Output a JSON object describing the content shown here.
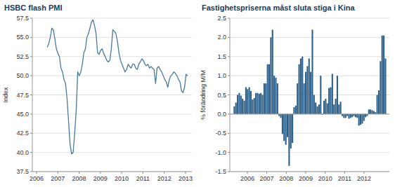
{
  "chart_data": [
    {
      "type": "line",
      "title": "HSBC flash PMI",
      "ylabel": "Index",
      "color": "#4a7a9b",
      "grid": true,
      "xlim": [
        2005.8,
        2013.3
      ],
      "xticks": [
        2006,
        2007,
        2008,
        2009,
        2010,
        2011,
        2012,
        2013
      ],
      "ylim": [
        37.5,
        57.5
      ],
      "yticks": [
        37.5,
        {
          "value": 40,
          "label": "40.0"
        },
        42.5,
        {
          "value": 45,
          "label": "45.0"
        },
        47.5,
        {
          "value": 50,
          "label": "50.0"
        },
        52.5,
        {
          "value": 55,
          "label": "55.0"
        },
        57.5
      ],
      "x": [
        2006.5,
        2006.5717,
        2006.6435,
        2006.7152,
        2006.787,
        2006.8587,
        2006.9304,
        2007.0022,
        2007.0739,
        2007.1457,
        2007.2174,
        2007.2891,
        2007.3609,
        2007.4326,
        2007.5043,
        2007.5761,
        2007.6478,
        2007.7196,
        2007.7913,
        2007.863,
        2007.9348,
        2008.0065,
        2008.0783,
        2008.15,
        2008.2217,
        2008.2935,
        2008.3652,
        2008.437,
        2008.5087,
        2008.5804,
        2008.6522,
        2008.7239,
        2008.7957,
        2008.8674,
        2008.9391,
        2009.0109,
        2009.0826,
        2009.1543,
        2009.2261,
        2009.2978,
        2009.3696,
        2009.4413,
        2009.513,
        2009.5848,
        2009.6565,
        2009.7283,
        2009.8,
        2009.8717,
        2009.9435,
        2010.0152,
        2010.087,
        2010.1587,
        2010.2304,
        2010.3022,
        2010.3739,
        2010.4457,
        2010.5174,
        2010.5891,
        2010.6609,
        2010.7326,
        2010.8043,
        2010.8761,
        2010.9478,
        2011.0196,
        2011.0913,
        2011.163,
        2011.2348,
        2011.3065,
        2011.3783,
        2011.45,
        2011.5217,
        2011.5935,
        2011.6652,
        2011.737,
        2011.8087,
        2011.8804,
        2011.9522,
        2012.0239,
        2012.0957,
        2012.1674,
        2012.2391,
        2012.3109,
        2012.3826,
        2012.4543,
        2012.5261,
        2012.5978,
        2012.6696,
        2012.7413,
        2012.813,
        2012.8848,
        2012.9565,
        2013.0283,
        2013.1
      ],
      "values": [
        53.7,
        54.2,
        55.0,
        56.2,
        56.0,
        54.8,
        53.5,
        52.9,
        52.5,
        51.0,
        50.5,
        49.5,
        49.0,
        47.0,
        44.0,
        41.0,
        39.8,
        40.0,
        42.5,
        45.5,
        50.5,
        50.0,
        50.5,
        51.5,
        53.0,
        53.5,
        55.0,
        55.5,
        56.2,
        57.0,
        57.3,
        56.5,
        55.5,
        53.0,
        52.8,
        53.3,
        53.5,
        52.9,
        52.5,
        52.0,
        51.8,
        52.0,
        53.5,
        56.0,
        55.8,
        55.5,
        54.5,
        53.0,
        52.0,
        51.5,
        51.0,
        50.5,
        50.8,
        51.5,
        51.2,
        51.0,
        51.5,
        51.5,
        51.0,
        50.8,
        51.5,
        51.8,
        52.2,
        52.0,
        51.5,
        51.3,
        51.5,
        51.0,
        51.2,
        51.0,
        50.8,
        49.0,
        51.0,
        51.2,
        50.8,
        50.5,
        50.0,
        49.5,
        49.2,
        48.5,
        49.5,
        50.0,
        50.2,
        50.5,
        50.3,
        50.0,
        49.5,
        49.2,
        48.0,
        47.8,
        48.5,
        50.2,
        50.0
      ]
    },
    {
      "type": "bar",
      "title": "Fastighetspriserna måst sluta stiga i Kina",
      "ylabel": "% förändring M/M",
      "color": "#2b5f8a",
      "grid": true,
      "xlim": [
        2005.1,
        2013.3
      ],
      "xticks": [
        2006,
        2007,
        2008,
        2009,
        2010,
        2011,
        2012
      ],
      "ylim": [
        -1.5,
        2.5
      ],
      "yticks": [
        -1.5,
        {
          "value": -1,
          "label": "-1.0"
        },
        -0.5,
        {
          "value": 0,
          "label": "0.0"
        },
        0.5,
        {
          "value": 1,
          "label": "1.0"
        },
        1.5,
        {
          "value": 2,
          "label": "2.0"
        },
        2.5
      ],
      "x": [
        2005.33,
        2005.4154,
        2005.5008,
        2005.5862,
        2005.6715,
        2005.7569,
        2005.8423,
        2005.9277,
        2006.0131,
        2006.0985,
        2006.1838,
        2006.2692,
        2006.3546,
        2006.44,
        2006.5254,
        2006.6108,
        2006.6962,
        2006.7815,
        2006.8669,
        2006.9523,
        2007.0377,
        2007.1231,
        2007.2085,
        2007.2938,
        2007.3792,
        2007.4646,
        2007.55,
        2007.6354,
        2007.7208,
        2007.8062,
        2007.8915,
        2007.9769,
        2008.0623,
        2008.1477,
        2008.2331,
        2008.3185,
        2008.4038,
        2008.4892,
        2008.5746,
        2008.66,
        2008.7454,
        2008.8308,
        2008.9162,
        2009.0015,
        2009.0869,
        2009.1723,
        2009.2577,
        2009.3431,
        2009.4285,
        2009.5138,
        2009.5992,
        2009.6846,
        2009.77,
        2009.8554,
        2009.9408,
        2010.0262,
        2010.1115,
        2010.1969,
        2010.2823,
        2010.3677,
        2010.4531,
        2010.5385,
        2010.6238,
        2010.7092,
        2010.7946,
        2010.88,
        2010.9654,
        2011.0508,
        2011.1362,
        2011.2215,
        2011.3069,
        2011.3923,
        2011.4777,
        2011.5631,
        2011.6485,
        2011.7338,
        2011.8192,
        2011.9046,
        2011.99,
        2012.0754,
        2012.1608,
        2012.2462,
        2012.3315,
        2012.4169,
        2012.5023,
        2012.5877,
        2012.6731,
        2012.7585,
        2012.8438,
        2012.9292,
        2013.0146,
        2013.1
      ],
      "values": [
        0.2,
        0.3,
        0.5,
        0.55,
        0.48,
        0.4,
        0.35,
        0.7,
        0.65,
        0.7,
        0.6,
        0.38,
        0.42,
        0.55,
        0.55,
        0.53,
        0.55,
        0.5,
        0.8,
        0.8,
        1.3,
        1.3,
        2.0,
        2.2,
        1.0,
        0.95,
        0.8,
        -0.05,
        -0.1,
        -0.52,
        -0.7,
        -0.8,
        -0.6,
        -1.35,
        -0.9,
        -0.75,
        0.18,
        0.22,
        0.8,
        1.3,
        1.45,
        1.5,
        0.8,
        1.1,
        1.25,
        1.45,
        1.1,
        2.2,
        0.5,
        0.3,
        0.2,
        0.25,
        1.0,
        -0.02,
        0.35,
        0.4,
        0.28,
        0.68,
        0.7,
        1.05,
        0.25,
        0.4,
        1.0,
        0.25,
        0.32,
        -0.05,
        -0.1,
        -0.1,
        -0.05,
        -0.12,
        -0.1,
        -0.08,
        -0.05,
        -0.08,
        -0.1,
        -0.3,
        -0.28,
        -0.25,
        -0.18,
        -0.08,
        -0.05,
        0.12,
        0.12,
        0.1,
        0.08,
        0.05,
        0.5,
        0.62,
        1.38,
        2.05,
        2.05,
        1.45
      ]
    }
  ]
}
